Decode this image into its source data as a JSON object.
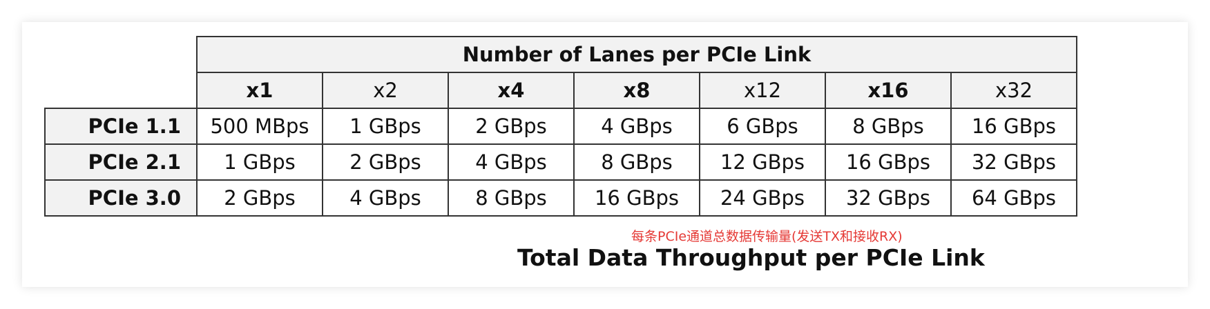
{
  "table": {
    "group_header": "Number of Lanes per PCIe Link",
    "columns": [
      {
        "label": "x1",
        "bold": true
      },
      {
        "label": "x2",
        "bold": false
      },
      {
        "label": "x4",
        "bold": true
      },
      {
        "label": "x8",
        "bold": true
      },
      {
        "label": "x12",
        "bold": false
      },
      {
        "label": "x16",
        "bold": true
      },
      {
        "label": "x32",
        "bold": false
      }
    ],
    "rows": [
      {
        "label": "PCIe 1.1",
        "values": [
          "500 MBps",
          "1 GBps",
          "2 GBps",
          "4 GBps",
          "6 GBps",
          "8 GBps",
          "16 GBps"
        ]
      },
      {
        "label": "PCIe 2.1",
        "values": [
          "1 GBps",
          "2 GBps",
          "4 GBps",
          "8 GBps",
          "12 GBps",
          "16 GBps",
          "32 GBps"
        ]
      },
      {
        "label": "PCIe 3.0",
        "values": [
          "2 GBps",
          "4 GBps",
          "8 GBps",
          "16 GBps",
          "24 GBps",
          "32 GBps",
          "64 GBps"
        ]
      }
    ]
  },
  "annotation": "每条PCIe通道总数据传输量(发送TX和接收RX)",
  "caption": "Total Data Throughput per PCIe Link",
  "colors": {
    "annotation": "#e53935",
    "header_fill": "#f2f2f2",
    "border": "#333333"
  }
}
